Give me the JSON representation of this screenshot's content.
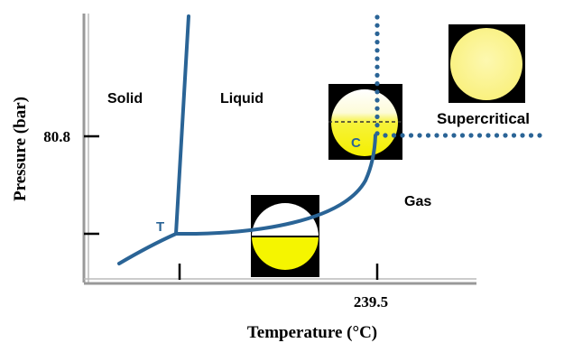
{
  "diagram": {
    "type": "phase-diagram",
    "axes": {
      "ylabel": "Pressure (bar)",
      "xlabel": "Temperature (°C)",
      "ytick_label": "80.8",
      "xtick_label": "239.5"
    },
    "regions": {
      "solid": "Solid",
      "liquid": "Liquid",
      "gas": "Gas",
      "supercritical": "Supercritical"
    },
    "points": {
      "triple": "T",
      "critical": "C"
    },
    "colors": {
      "curve": "#2a6496",
      "axis": "#888888",
      "liquid_fill": "#f5f500",
      "supercritical_fill": "#fbf59a",
      "vial_background": "#000000"
    }
  }
}
